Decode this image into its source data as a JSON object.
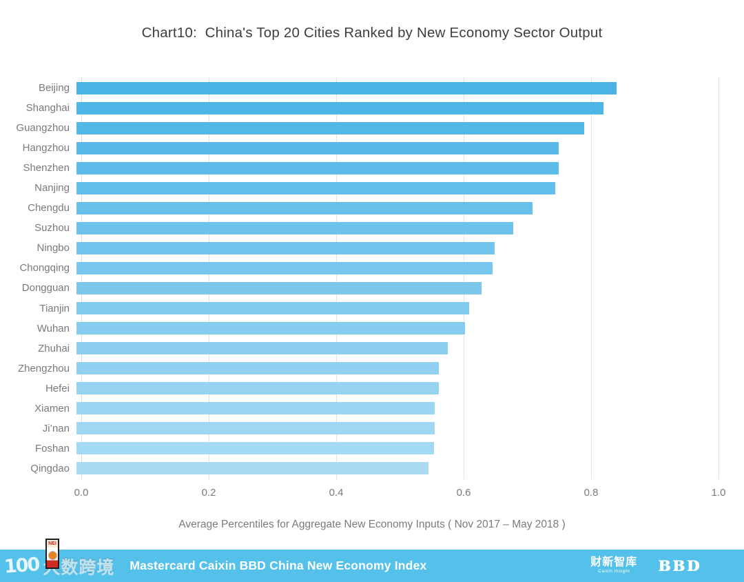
{
  "title": "Chart10:  China's Top 20 Cities Ranked by New Economy Sector Output",
  "chart_data": {
    "type": "bar",
    "orientation": "horizontal",
    "title": "Chart10:  China's Top 20 Cities Ranked by New Economy Sector Output",
    "categories": [
      "Beijing",
      "Shanghai",
      "Guangzhou",
      "Hangzhou",
      "Shenzhen",
      "Nanjing",
      "Chengdu",
      "Suzhou",
      "Ningbo",
      "Chongqing",
      "Dongguan",
      "Tianjin",
      "Wuhan",
      "Zhuhai",
      "Zhengzhou",
      "Hefei",
      "Xiamen",
      "Ji’nan",
      "Foshan",
      "Qingdao"
    ],
    "values": [
      0.84,
      0.82,
      0.79,
      0.75,
      0.75,
      0.745,
      0.71,
      0.68,
      0.651,
      0.647,
      0.63,
      0.611,
      0.605,
      0.578,
      0.564,
      0.564,
      0.557,
      0.557,
      0.556,
      0.548
    ],
    "xlabel": "Average Percentiles for Aggregate New Economy Inputs ( Nov 2017 – May 2018 )",
    "ylabel": "",
    "xlim": [
      0.0,
      1.0
    ],
    "xticks": [
      0.0,
      0.2,
      0.4,
      0.6,
      0.8,
      1.0
    ],
    "grid": "vertical gridlines at each x tick",
    "legend": "none",
    "bar_color_scale": "gradient darker blue (top / higher value) to lighter blue (bottom / lower value)"
  },
  "colors": {
    "bar_top": "#49B3E6",
    "bar_bottom": "#A9DBF4",
    "footer_bg": "#54C1EA",
    "grid": "#E3E3E3",
    "axis_line": "#D9D9D9",
    "label_text": "#7A7A7A",
    "title_text": "#3D3D3D"
  },
  "footer": {
    "watermark_prefix": "100",
    "watermark_text": "大数跨境",
    "badge_text": "NEI",
    "index_title": "Mastercard Caixin BBD China New Economy Index",
    "caixin_logo": "财新智库",
    "caixin_sub": "Caixin Insight",
    "bbd_logo": "BBD"
  }
}
